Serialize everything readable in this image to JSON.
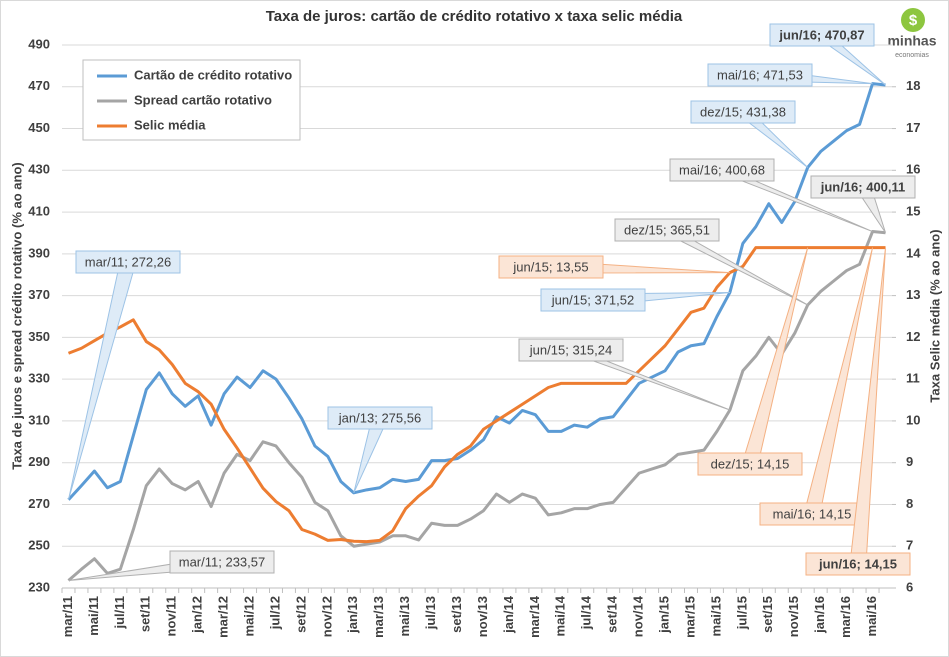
{
  "chart_data": {
    "type": "line",
    "title": "Taxa de juros: cartão de crédito rotativo x taxa selic média",
    "y_label": "Taxa de juros e spread crédito rotativo (% ao ano)",
    "y2_label": "Taxa Selic média (% ao ano)",
    "logo": {
      "name": "minhas",
      "tagline": "economias"
    },
    "categories": [
      "mar/11",
      null,
      "mai/11",
      null,
      "jul/11",
      null,
      "set/11",
      null,
      "nov/11",
      null,
      "jan/12",
      null,
      "mar/12",
      null,
      "mai/12",
      null,
      "jul/12",
      null,
      "set/12",
      null,
      "nov/12",
      null,
      "jan/13",
      null,
      "mar/13",
      null,
      "mai/13",
      null,
      "jul/13",
      null,
      "set/13",
      null,
      "nov/13",
      null,
      "jan/14",
      null,
      "mar/14",
      null,
      "mai/14",
      null,
      "jul/14",
      null,
      "set/14",
      null,
      "nov/14",
      null,
      "jan/15",
      null,
      "mar/15",
      null,
      "mai/15",
      null,
      "jul/15",
      null,
      "set/15",
      null,
      "nov/15",
      null,
      "jan/16",
      null,
      "mar/16",
      null,
      "mai/16",
      null
    ],
    "series": [
      {
        "name": "Cartão de crédito rotativo",
        "color": "#5b9bd5",
        "values": [
          272.26,
          279,
          286,
          278,
          281,
          303,
          325,
          333,
          323,
          317,
          322,
          308,
          323,
          331,
          326,
          334,
          330,
          321,
          311,
          298,
          293,
          281,
          275.56,
          277,
          278,
          282,
          281,
          282,
          291,
          291,
          292,
          296,
          301,
          312,
          309,
          315,
          313,
          305,
          305,
          308,
          307,
          311,
          312,
          320,
          328,
          331,
          334,
          343,
          346,
          347,
          360,
          371.52,
          395,
          403,
          414,
          405,
          415,
          431.38,
          439,
          444,
          449,
          452,
          471.53,
          470.87
        ]
      },
      {
        "name": "Spread cartão rotativo",
        "color": "#a5a5a5",
        "values": [
          233.57,
          239,
          244,
          237,
          239,
          258,
          279,
          287,
          280,
          277,
          281,
          269,
          285,
          294,
          291,
          300,
          298,
          290,
          283,
          271,
          267,
          255,
          250,
          251,
          252,
          255,
          255,
          253,
          261,
          260,
          260,
          263,
          267,
          275,
          271,
          275,
          273,
          265,
          266,
          268,
          268,
          270,
          271,
          278,
          285,
          287,
          289,
          294,
          295,
          296,
          305,
          315.24,
          334,
          341,
          350,
          342,
          352,
          365.51,
          372,
          377,
          382,
          385,
          400.68,
          400.11
        ]
      },
      {
        "name": "Selic média",
        "color": "#ed7d31",
        "axis": "y2",
        "values": [
          11.62,
          11.74,
          11.92,
          12.1,
          12.25,
          12.42,
          11.9,
          11.7,
          11.35,
          10.9,
          10.7,
          10.4,
          9.8,
          9.35,
          8.87,
          8.39,
          8.07,
          7.85,
          7.4,
          7.29,
          7.14,
          7.16,
          7.12,
          7.11,
          7.14,
          7.37,
          7.9,
          8.2,
          8.45,
          8.9,
          9.2,
          9.4,
          9.8,
          10.0,
          10.2,
          10.4,
          10.6,
          10.8,
          10.9,
          10.9,
          10.9,
          10.9,
          10.9,
          10.9,
          11.2,
          11.5,
          11.8,
          12.2,
          12.6,
          12.7,
          13.2,
          13.55,
          13.7,
          14.15,
          14.15,
          14.15,
          14.15,
          14.15,
          14.15,
          14.15,
          14.15,
          14.15,
          14.15,
          14.15
        ]
      }
    ],
    "annotations": [
      "mar/11; 272,26",
      "mar/11; 233,57",
      "jan/13; 275,56",
      "jun/15; 371,52",
      "dez/15; 431,38",
      "mai/16; 471,53",
      "jun/16; 470,87",
      "jun/15; 315,24",
      "dez/15; 365,51",
      "mai/16; 400,68",
      "jun/16; 400,11",
      "jun/15; 13,55",
      "dez/15; 14,15",
      "mai/16; 14,15",
      "jun/16; 14,15"
    ],
    "ylim": [
      230,
      490
    ],
    "yticks": [
      230,
      250,
      270,
      290,
      310,
      330,
      350,
      370,
      390,
      410,
      430,
      450,
      470,
      490
    ],
    "y2lim": [
      6,
      19
    ],
    "y2ticks": [
      6,
      7,
      8,
      9,
      10,
      11,
      12,
      13,
      14,
      15,
      16,
      17,
      18
    ],
    "grid": true,
    "legend": "upper left"
  }
}
